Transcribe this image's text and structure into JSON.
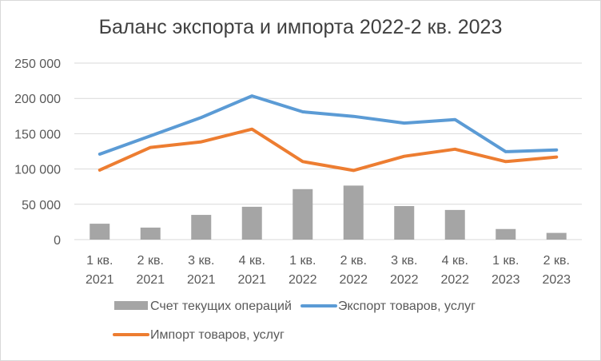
{
  "chart_data": {
    "type": "bar+line",
    "title": "Баланс экспорта и импорта 2022-2 кв. 2023",
    "categories": [
      [
        "1 кв.",
        "2021"
      ],
      [
        "2 кв.",
        "2021"
      ],
      [
        "3 кв.",
        "2021"
      ],
      [
        "4 кв.",
        "2021"
      ],
      [
        "1 кв.",
        "2022"
      ],
      [
        "2 кв.",
        "2022"
      ],
      [
        "3 кв.",
        "2022"
      ],
      [
        "4 кв.",
        "2022"
      ],
      [
        "1 кв.",
        "2023"
      ],
      [
        "2 кв.",
        "2023"
      ]
    ],
    "ylim": [
      0,
      250000
    ],
    "yticks": [
      "0",
      "50 000",
      "100 000",
      "150 000",
      "200 000",
      "250 000"
    ],
    "grid": true,
    "legend_position": "bottom",
    "series": [
      {
        "name": "Счет текущих операций",
        "kind": "bar",
        "color": "#a5a5a5",
        "values": [
          22500,
          17000,
          35000,
          46500,
          71500,
          76500,
          47500,
          42000,
          15000,
          9500
        ]
      },
      {
        "name": "Экспорт товаров, услуг",
        "kind": "line",
        "color": "#5b9bd5",
        "values": [
          121000,
          147000,
          173000,
          203500,
          181000,
          174500,
          165000,
          170000,
          124500,
          127000
        ]
      },
      {
        "name": "Импорт товаров, услуг",
        "kind": "line",
        "color": "#ed7d31",
        "values": [
          98500,
          130500,
          138500,
          156500,
          110500,
          98000,
          118000,
          128000,
          110500,
          117000
        ]
      }
    ]
  }
}
